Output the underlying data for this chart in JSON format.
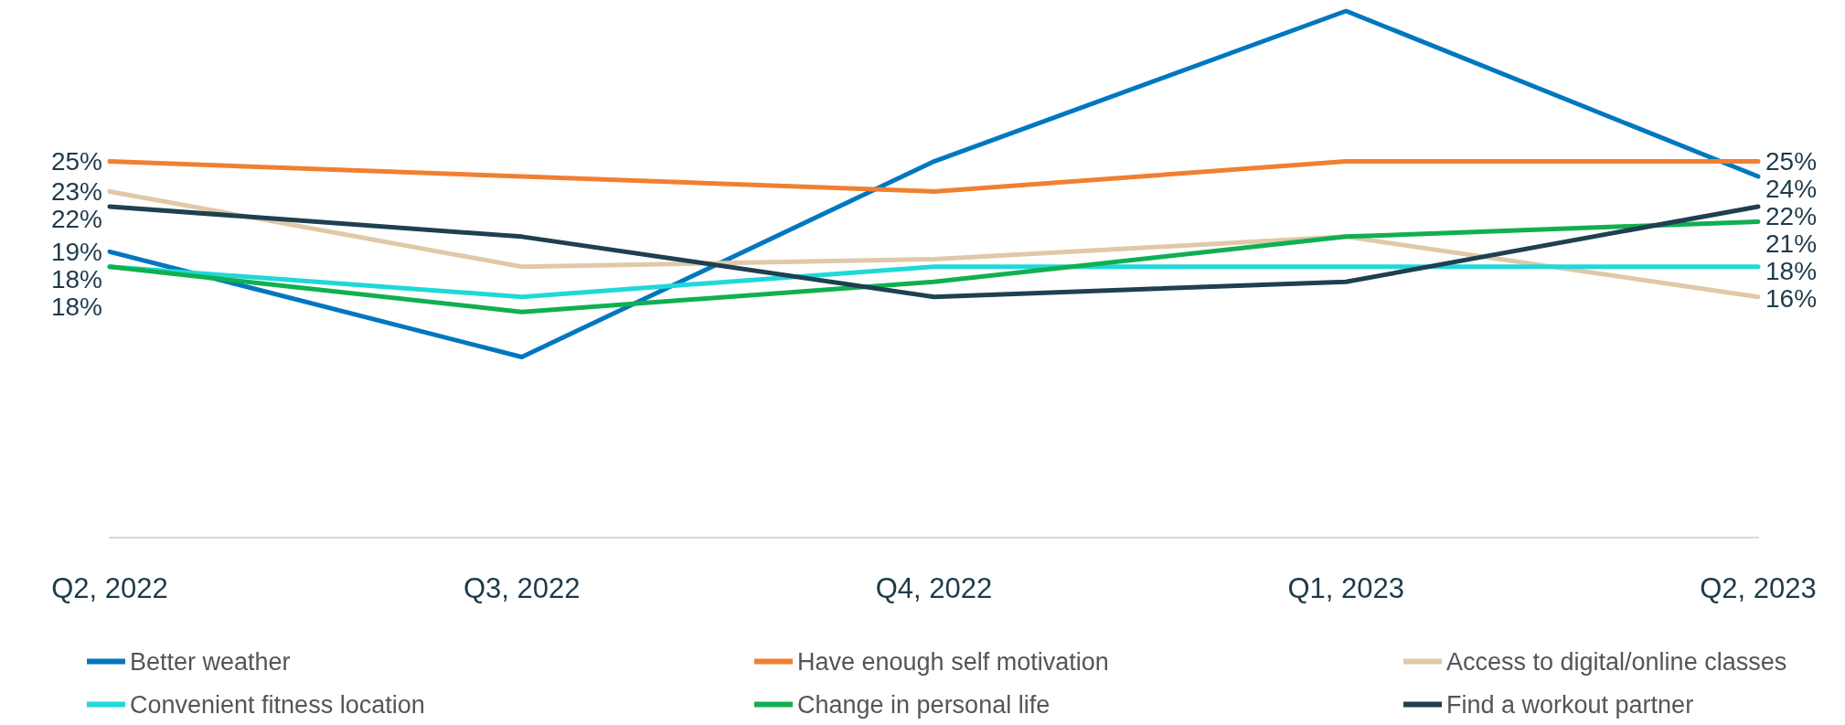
{
  "chart_data": {
    "type": "line",
    "categories": [
      "Q2, 2022",
      "Q3, 2022",
      "Q4, 2022",
      "Q1, 2023",
      "Q2, 2023"
    ],
    "legend": "bottom",
    "marker": "none",
    "line_style": "solid",
    "grid": false,
    "tick_labels": "x",
    "series": [
      {
        "name": "Better weather",
        "color": "#0077c0",
        "values": [
          19,
          12,
          25,
          35,
          24
        ],
        "value_labels": [
          "19%",
          null,
          null,
          null,
          "24%"
        ]
      },
      {
        "name": "Have enough self motivation",
        "color": "#f08030",
        "values": [
          25,
          24,
          23,
          25,
          25
        ],
        "value_labels": [
          "25%",
          null,
          null,
          null,
          "25%"
        ]
      },
      {
        "name": "Access to digital/online classes",
        "color": "#e0c8a8",
        "values": [
          23,
          18,
          18.5,
          20,
          16
        ],
        "value_labels": [
          "23%",
          null,
          null,
          null,
          "16%"
        ]
      },
      {
        "name": "Convenient fitness location",
        "color": "#20d8d8",
        "values": [
          18,
          16,
          18,
          18,
          18
        ],
        "value_labels": [
          "18%",
          null,
          null,
          null,
          "18%"
        ]
      },
      {
        "name": "Change in personal life",
        "color": "#10b050",
        "values": [
          18,
          15,
          17,
          20,
          21
        ],
        "value_labels": [
          "18%",
          null,
          null,
          null,
          "21%"
        ]
      },
      {
        "name": "Find a workout partner",
        "color": "#1e4050",
        "values": [
          22,
          20,
          16,
          17,
          22
        ],
        "value_labels": [
          "22%",
          null,
          null,
          null,
          "22%"
        ]
      }
    ]
  }
}
